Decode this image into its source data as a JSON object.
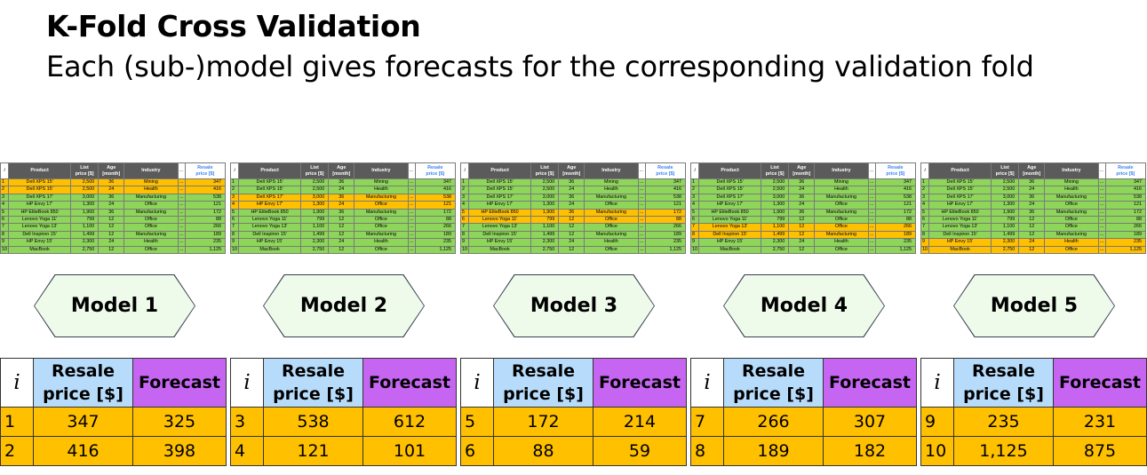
{
  "title": "K-Fold Cross Validation",
  "subtitle": "Each (sub-)model gives forecasts for the corresponding validation fold",
  "dataset": {
    "headers": {
      "i": "i",
      "product": "Product",
      "list_price_1": "List",
      "list_price_2": "price [$]",
      "age_1": "Age",
      "age_2": "[month]",
      "industry": "Industry",
      "ellipsis": "...",
      "resale_1": "Resale",
      "resale_2": "price [$]"
    },
    "rows": [
      {
        "i": "1",
        "product": "Dell XPS 15'",
        "list_price": "2,500",
        "age": "36",
        "industry": "Mining",
        "ellipsis": "...",
        "resale": "347"
      },
      {
        "i": "2",
        "product": "Dell XPS 15'",
        "list_price": "2,500",
        "age": "24",
        "industry": "Health",
        "ellipsis": "...",
        "resale": "416"
      },
      {
        "i": "3",
        "product": "Dell XPS 17'",
        "list_price": "3,000",
        "age": "36",
        "industry": "Manufacturing",
        "ellipsis": "...",
        "resale": "538"
      },
      {
        "i": "4",
        "product": "HP Envy 17'",
        "list_price": "1,300",
        "age": "24",
        "industry": "Office",
        "ellipsis": "...",
        "resale": "121"
      },
      {
        "i": "5",
        "product": "HP EliteBook 850",
        "list_price": "1,900",
        "age": "36",
        "industry": "Manufacturing",
        "ellipsis": "...",
        "resale": "172"
      },
      {
        "i": "6",
        "product": "Lenovo Yoga 11'",
        "list_price": "799",
        "age": "12",
        "industry": "Office",
        "ellipsis": "...",
        "resale": "88"
      },
      {
        "i": "7",
        "product": "Lenovo Yoga 13'",
        "list_price": "1,100",
        "age": "12",
        "industry": "Office",
        "ellipsis": "...",
        "resale": "266"
      },
      {
        "i": "8",
        "product": "Dell Inspiron 15'",
        "list_price": "1,499",
        "age": "12",
        "industry": "Manufacturing",
        "ellipsis": "...",
        "resale": "189"
      },
      {
        "i": "9",
        "product": "HP Envy 15'",
        "list_price": "2,300",
        "age": "24",
        "industry": "Health",
        "ellipsis": "...",
        "resale": "235"
      },
      {
        "i": "10",
        "product": "MacBook",
        "list_price": "2,750",
        "age": "12",
        "industry": "Office",
        "ellipsis": "...",
        "resale": "1,125"
      }
    ]
  },
  "folds": [
    {
      "model_label": "Model 1",
      "validation_rows": [
        0,
        1
      ],
      "results": [
        {
          "i": "1",
          "resale": "347",
          "forecast": "325"
        },
        {
          "i": "2",
          "resale": "416",
          "forecast": "398"
        }
      ]
    },
    {
      "model_label": "Model 2",
      "validation_rows": [
        2,
        3
      ],
      "results": [
        {
          "i": "3",
          "resale": "538",
          "forecast": "612"
        },
        {
          "i": "4",
          "resale": "121",
          "forecast": "101"
        }
      ]
    },
    {
      "model_label": "Model 3",
      "validation_rows": [
        4,
        5
      ],
      "results": [
        {
          "i": "5",
          "resale": "172",
          "forecast": "214"
        },
        {
          "i": "6",
          "resale": "88",
          "forecast": "59"
        }
      ]
    },
    {
      "model_label": "Model 4",
      "validation_rows": [
        6,
        7
      ],
      "results": [
        {
          "i": "7",
          "resale": "266",
          "forecast": "307"
        },
        {
          "i": "8",
          "resale": "189",
          "forecast": "182"
        }
      ]
    },
    {
      "model_label": "Model 5",
      "validation_rows": [
        8,
        9
      ],
      "results": [
        {
          "i": "9",
          "resale": "235",
          "forecast": "231"
        },
        {
          "i": "10",
          "resale": "1,125",
          "forecast": "875"
        }
      ]
    }
  ],
  "result_headers": {
    "i": "i",
    "resale_1": "Resale",
    "resale_2": "price [$]",
    "forecast": "Forecast"
  },
  "colors": {
    "training": "#8ed65a",
    "validation": "#ffc000",
    "resale_header": "#b7dcfb",
    "forecast_header": "#c765f3",
    "model_fill": "#eefaea"
  }
}
